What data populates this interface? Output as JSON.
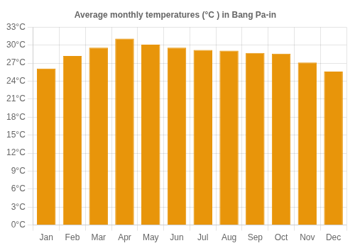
{
  "chart_data": {
    "type": "bar",
    "title": "Average monthly temperatures (°C ) in Bang Pa-in",
    "categories": [
      "Jan",
      "Feb",
      "Mar",
      "Apr",
      "May",
      "Jun",
      "Jul",
      "Aug",
      "Sep",
      "Oct",
      "Nov",
      "Dec"
    ],
    "values": [
      26.1,
      28.2,
      29.6,
      31.1,
      30.1,
      29.6,
      29.2,
      29.1,
      28.7,
      28.6,
      27.1,
      25.6
    ],
    "color": "#E8950A",
    "ylim": [
      0,
      33
    ],
    "yticks": [
      {
        "value": 0,
        "label": "0°C"
      },
      {
        "value": 3,
        "label": "3°C"
      },
      {
        "value": 6,
        "label": "6°C"
      },
      {
        "value": 9,
        "label": "9°C"
      },
      {
        "value": 12,
        "label": "12°C"
      },
      {
        "value": 15,
        "label": "15°C"
      },
      {
        "value": 18,
        "label": "18°C"
      },
      {
        "value": 21,
        "label": "21°C"
      },
      {
        "value": 24,
        "label": "24°C"
      },
      {
        "value": 27,
        "label": "27°C"
      },
      {
        "value": 30,
        "label": "30°C"
      },
      {
        "value": 33,
        "label": "33°C"
      }
    ],
    "grid": true
  }
}
